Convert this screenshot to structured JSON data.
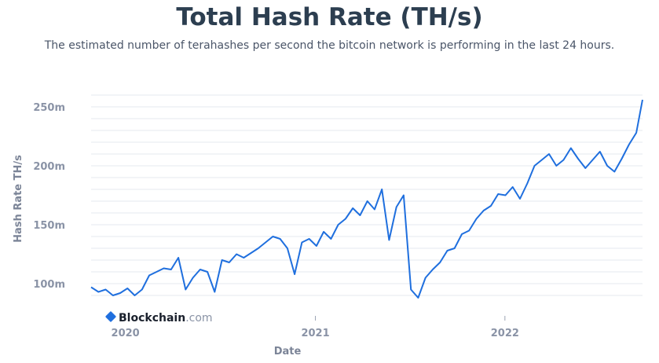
{
  "header": {
    "title": "Total Hash Rate (TH/s)",
    "subtitle": "The estimated number of terahashes per second the bitcoin network is performing in the last 24 hours."
  },
  "brand": {
    "name": "Blockchain",
    "suffix": ".com"
  },
  "colors": {
    "line": "#1f6fde",
    "grid": "#e6e9ef"
  },
  "chart_data": {
    "type": "line",
    "title": "Total Hash Rate (TH/s)",
    "xlabel": "Date",
    "ylabel": "Hash Rate TH/s",
    "x_ticks": [
      "2020",
      "2021",
      "2022"
    ],
    "y_ticks": [
      100,
      150,
      200,
      250
    ],
    "y_tick_labels": [
      "100m",
      "150m",
      "200m",
      "250m"
    ],
    "ylim": [
      82,
      262
    ],
    "xlim": [
      "2019-10-27",
      "2022-09-23"
    ],
    "grid": true,
    "series": [
      {
        "x": [
          "2019-10-27",
          "2019-11-10",
          "2019-11-24",
          "2019-12-08",
          "2019-12-22",
          "2020-01-05",
          "2020-01-19",
          "2020-02-02",
          "2020-02-16",
          "2020-03-01",
          "2020-03-15",
          "2020-03-29",
          "2020-04-12",
          "2020-04-26",
          "2020-05-10",
          "2020-05-24",
          "2020-06-07",
          "2020-06-21",
          "2020-07-05",
          "2020-07-19",
          "2020-08-02",
          "2020-08-16",
          "2020-08-30",
          "2020-09-13",
          "2020-09-27",
          "2020-10-11",
          "2020-10-25",
          "2020-11-08",
          "2020-11-22",
          "2020-12-06",
          "2020-12-20",
          "2021-01-03",
          "2021-01-17",
          "2021-01-31",
          "2021-02-14",
          "2021-02-28",
          "2021-03-14",
          "2021-03-28",
          "2021-04-11",
          "2021-04-25",
          "2021-05-09",
          "2021-05-23",
          "2021-06-06",
          "2021-06-20",
          "2021-07-04",
          "2021-07-18",
          "2021-08-01",
          "2021-08-15",
          "2021-08-29",
          "2021-09-12",
          "2021-09-26",
          "2021-10-10",
          "2021-10-24",
          "2021-11-07",
          "2021-11-21",
          "2021-12-05",
          "2021-12-19",
          "2022-01-02",
          "2022-01-16",
          "2022-01-30",
          "2022-02-13",
          "2022-02-27",
          "2022-03-13",
          "2022-03-27",
          "2022-04-10",
          "2022-04-24",
          "2022-05-08",
          "2022-05-22",
          "2022-06-05",
          "2022-06-19",
          "2022-07-03",
          "2022-07-17",
          "2022-07-31",
          "2022-08-14",
          "2022-08-28",
          "2022-09-11",
          "2022-09-23"
        ],
        "values": [
          97,
          93,
          95,
          90,
          92,
          96,
          90,
          95,
          107,
          110,
          113,
          112,
          122,
          95,
          105,
          112,
          110,
          93,
          120,
          118,
          125,
          122,
          126,
          130,
          135,
          140,
          138,
          130,
          108,
          135,
          138,
          132,
          144,
          138,
          150,
          155,
          164,
          158,
          170,
          163,
          180,
          137,
          165,
          175,
          95,
          88,
          105,
          112,
          118,
          128,
          130,
          142,
          145,
          155,
          162,
          166,
          176,
          175,
          182,
          172,
          185,
          200,
          205,
          210,
          200,
          205,
          215,
          206,
          198,
          205,
          212,
          200,
          195,
          206,
          218,
          228,
          256
        ]
      }
    ]
  }
}
